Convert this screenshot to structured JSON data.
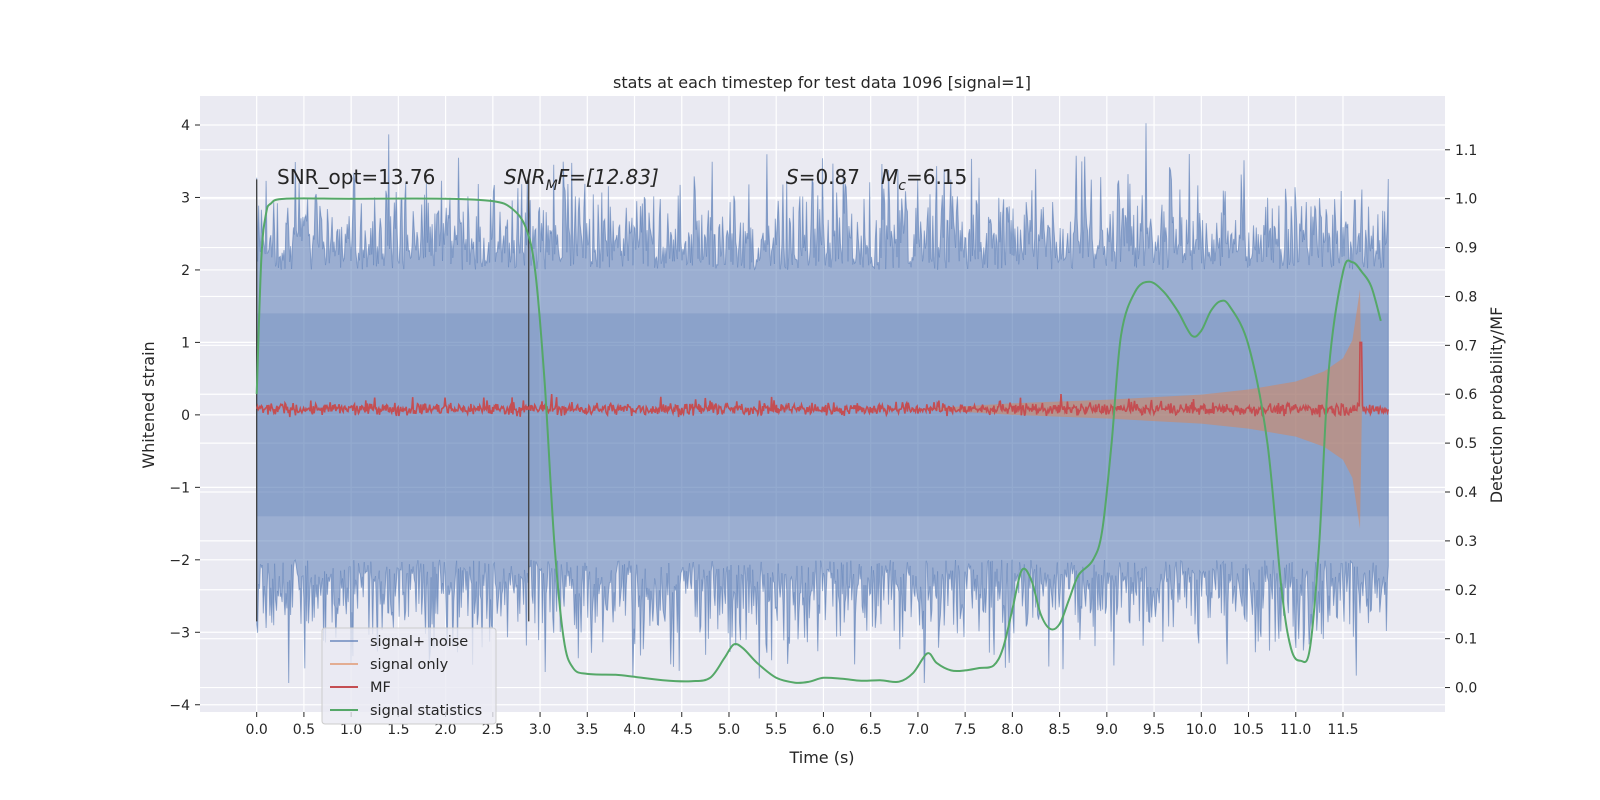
{
  "chart_data": {
    "type": "line",
    "title": "stats at each timestep for test data 1096 [signal=1]",
    "xlabel": "Time (s)",
    "ylabel": "Whitened strain",
    "ylabel_right": "Detection probability/MF",
    "xlim": [
      -0.6,
      12.58
    ],
    "ylim": [
      -4.1,
      4.4
    ],
    "ylim_right": [
      -0.05,
      1.21
    ],
    "x_ticks": [
      0.0,
      0.5,
      1.0,
      1.5,
      2.0,
      2.5,
      3.0,
      3.5,
      4.0,
      4.5,
      5.0,
      5.5,
      6.0,
      6.5,
      7.0,
      7.5,
      8.0,
      8.5,
      9.0,
      9.5,
      10.0,
      10.5,
      11.0,
      11.5
    ],
    "x_tick_labels": [
      "0.0",
      "0.5",
      "1.0",
      "1.5",
      "2.0",
      "2.5",
      "3.0",
      "3.5",
      "4.0",
      "4.5",
      "5.0",
      "5.5",
      "6.0",
      "6.5",
      "7.0",
      "7.5",
      "8.0",
      "8.5",
      "9.0",
      "9.5",
      "10.0",
      "10.5",
      "11.0",
      "11.5"
    ],
    "y_ticks": [
      -4,
      -3,
      -2,
      -1,
      0,
      1,
      2,
      3,
      4
    ],
    "y_tick_labels": [
      "−4",
      "−3",
      "−2",
      "−1",
      "0",
      "1",
      "2",
      "3",
      "4"
    ],
    "y_right_ticks": [
      0.0,
      0.1,
      0.2,
      0.3,
      0.4,
      0.5,
      0.6,
      0.7,
      0.8,
      0.9,
      1.0,
      1.1
    ],
    "y_right_tick_labels": [
      "0.0",
      "0.1",
      "0.2",
      "0.3",
      "0.4",
      "0.5",
      "0.6",
      "0.7",
      "0.8",
      "0.9",
      "1.0",
      "1.1"
    ],
    "grid": true,
    "legend_position": "bottom-left",
    "annotations": {
      "snr_opt": "SNR_opt=13.76",
      "snr_mf_base": "SNR",
      "snr_mf_sub": "M",
      "snr_mf_rest": "F=[12.83]",
      "s_symbol": "S",
      "s_value": "=0.87",
      "mc_symbol": "M",
      "mc_sub": "c",
      "mc_value": "=6.15"
    },
    "vertical_markers": [
      0.0,
      2.88
    ],
    "series": [
      {
        "name": "signal+ noise",
        "axis": "left",
        "color": "#4c72b0",
        "opacity": 0.5,
        "style": "noise band",
        "x_range": [
          0.0,
          11.98
        ],
        "typical_amplitude": 2.0,
        "peak_amplitude": 4.1
      },
      {
        "name": "signal only",
        "axis": "left",
        "color": "#dd8452",
        "opacity": 0.5,
        "style": "chirp envelope",
        "points": [
          [
            7.0,
            0.0
          ],
          [
            8.0,
            0.08
          ],
          [
            9.0,
            0.13
          ],
          [
            10.0,
            0.2
          ],
          [
            10.5,
            0.27
          ],
          [
            11.0,
            0.38
          ],
          [
            11.3,
            0.52
          ],
          [
            11.5,
            0.7
          ],
          [
            11.6,
            0.95
          ],
          [
            11.68,
            1.65
          ],
          [
            11.7,
            0.0
          ]
        ]
      },
      {
        "name": "MF",
        "axis": "left",
        "color": "#c44e52",
        "style": "noisy trace",
        "baseline": 0.08,
        "jitter": 0.06,
        "peak": [
          11.69,
          1.0
        ],
        "x_range": [
          0.0,
          11.98
        ]
      },
      {
        "name": "signal statistics",
        "axis": "right",
        "color": "#55a868",
        "points": [
          [
            0.0,
            0.6
          ],
          [
            0.05,
            0.88
          ],
          [
            0.1,
            0.97
          ],
          [
            0.15,
            0.99
          ],
          [
            0.3,
            1.0
          ],
          [
            1.0,
            1.0
          ],
          [
            2.0,
            1.0
          ],
          [
            2.5,
            0.995
          ],
          [
            2.7,
            0.98
          ],
          [
            2.85,
            0.94
          ],
          [
            2.95,
            0.85
          ],
          [
            3.05,
            0.62
          ],
          [
            3.15,
            0.3
          ],
          [
            3.25,
            0.1
          ],
          [
            3.35,
            0.04
          ],
          [
            3.5,
            0.028
          ],
          [
            3.8,
            0.026
          ],
          [
            4.0,
            0.022
          ],
          [
            4.3,
            0.015
          ],
          [
            4.6,
            0.013
          ],
          [
            4.8,
            0.02
          ],
          [
            4.95,
            0.06
          ],
          [
            5.05,
            0.088
          ],
          [
            5.15,
            0.08
          ],
          [
            5.3,
            0.05
          ],
          [
            5.5,
            0.02
          ],
          [
            5.7,
            0.01
          ],
          [
            5.85,
            0.012
          ],
          [
            6.0,
            0.02
          ],
          [
            6.2,
            0.018
          ],
          [
            6.4,
            0.014
          ],
          [
            6.6,
            0.015
          ],
          [
            6.8,
            0.012
          ],
          [
            6.95,
            0.03
          ],
          [
            7.1,
            0.07
          ],
          [
            7.2,
            0.05
          ],
          [
            7.35,
            0.035
          ],
          [
            7.5,
            0.035
          ],
          [
            7.65,
            0.04
          ],
          [
            7.8,
            0.045
          ],
          [
            7.9,
            0.08
          ],
          [
            8.0,
            0.16
          ],
          [
            8.1,
            0.24
          ],
          [
            8.2,
            0.22
          ],
          [
            8.3,
            0.15
          ],
          [
            8.4,
            0.12
          ],
          [
            8.5,
            0.13
          ],
          [
            8.6,
            0.18
          ],
          [
            8.7,
            0.23
          ],
          [
            8.85,
            0.26
          ],
          [
            8.95,
            0.32
          ],
          [
            9.05,
            0.5
          ],
          [
            9.15,
            0.72
          ],
          [
            9.3,
            0.81
          ],
          [
            9.45,
            0.83
          ],
          [
            9.6,
            0.81
          ],
          [
            9.75,
            0.77
          ],
          [
            9.9,
            0.72
          ],
          [
            10.0,
            0.73
          ],
          [
            10.1,
            0.77
          ],
          [
            10.2,
            0.79
          ],
          [
            10.3,
            0.78
          ],
          [
            10.5,
            0.7
          ],
          [
            10.7,
            0.5
          ],
          [
            10.85,
            0.2
          ],
          [
            10.95,
            0.08
          ],
          [
            11.05,
            0.055
          ],
          [
            11.15,
            0.08
          ],
          [
            11.25,
            0.3
          ],
          [
            11.35,
            0.65
          ],
          [
            11.5,
            0.85
          ],
          [
            11.6,
            0.87
          ],
          [
            11.7,
            0.85
          ],
          [
            11.8,
            0.82
          ],
          [
            11.9,
            0.75
          ]
        ]
      }
    ]
  }
}
